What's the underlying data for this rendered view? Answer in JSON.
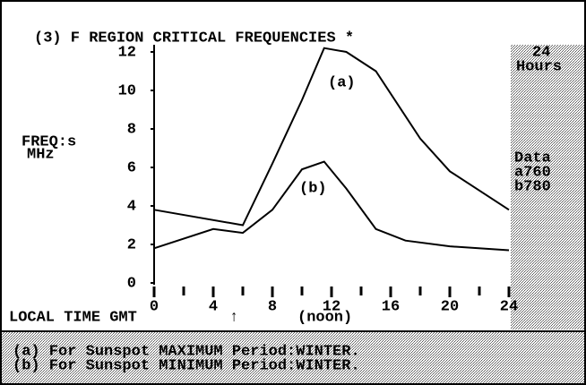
{
  "chart_data": {
    "type": "line",
    "title": "(3) F REGION CRITICAL FREQUENCIES *",
    "ylabel": [
      "FREQ:s",
      "MHz"
    ],
    "xlabel": "LOCAL TIME GMT",
    "noon_marker": "↑",
    "noon_label": "(noon)",
    "side_panel": [
      "24",
      "Hours",
      "Data",
      "a760",
      "b780"
    ],
    "annotations": [
      "(a)",
      "(b)"
    ],
    "footer": [
      "(a) For Sunspot MAXIMUM Period:WINTER.",
      "(b) For Sunspot MINIMUM Period:WINTER."
    ],
    "series": [
      {
        "name": "(a)",
        "color": "#000000",
        "x": [
          0,
          6,
          8,
          10,
          11.5,
          13,
          15,
          18,
          20,
          24
        ],
        "values": [
          3.8,
          3.0,
          6.2,
          9.5,
          12.2,
          12.0,
          11.0,
          7.5,
          5.8,
          3.8
        ]
      },
      {
        "name": "(b)",
        "color": "#000000",
        "x": [
          0,
          4,
          6,
          8,
          10,
          11.5,
          13,
          15,
          17,
          20,
          24
        ],
        "values": [
          1.8,
          2.8,
          2.6,
          3.8,
          5.9,
          6.3,
          4.9,
          2.8,
          2.2,
          1.9,
          1.7
        ]
      }
    ],
    "xlim": [
      0,
      24
    ],
    "xticks": [
      0,
      4,
      8,
      12,
      16,
      20,
      24
    ],
    "xminor_ticks": [
      2,
      6,
      10,
      14,
      18,
      22
    ],
    "ylim": [
      0,
      12
    ],
    "yticks": [
      0,
      2,
      4,
      6,
      8,
      10,
      12
    ]
  }
}
